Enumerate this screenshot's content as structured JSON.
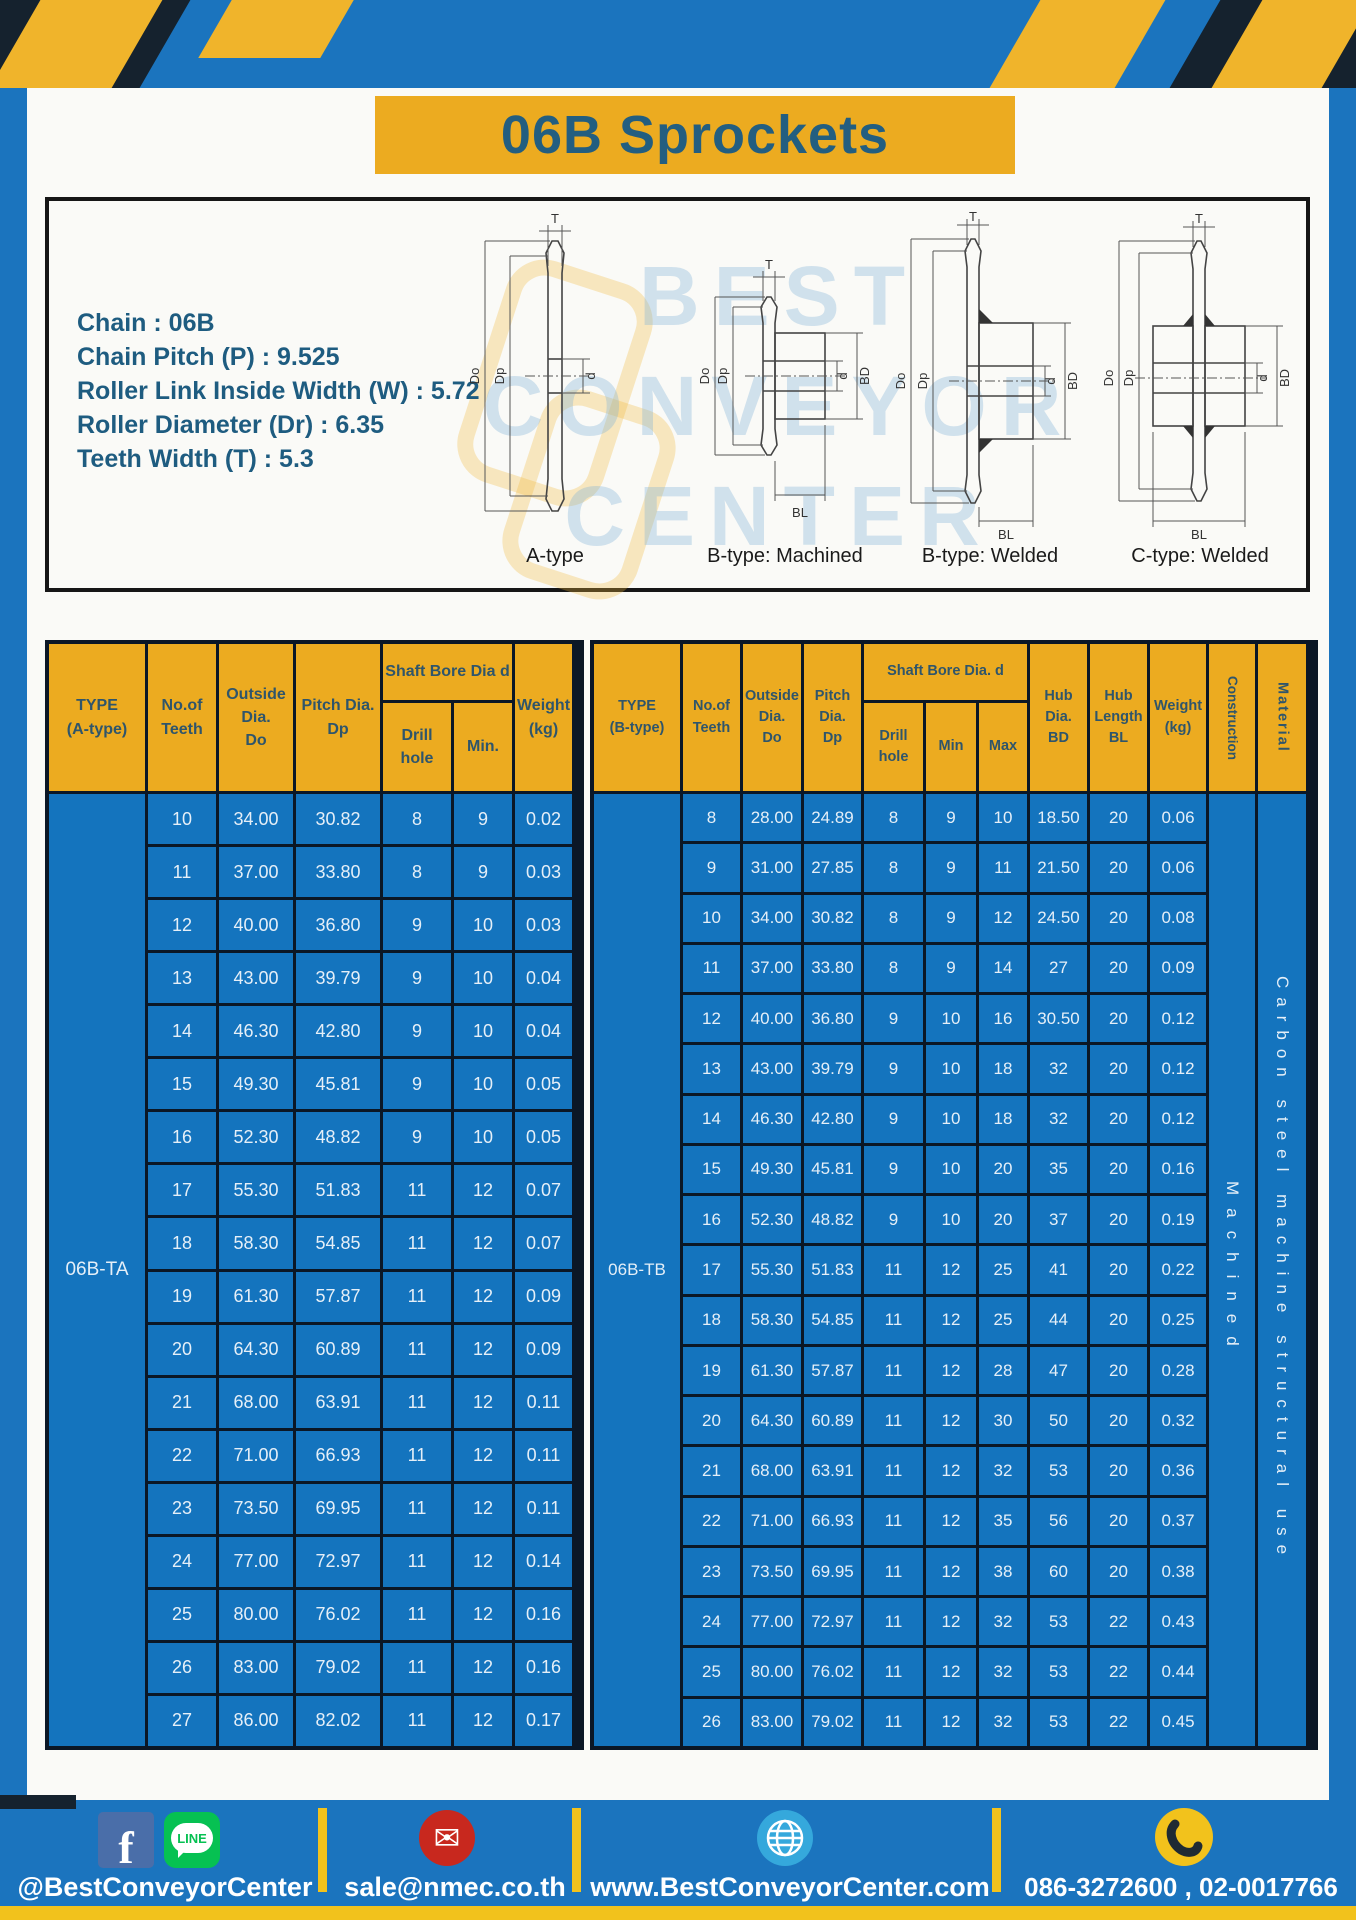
{
  "title": "06B Sprockets",
  "specs": [
    "Chain : 06B",
    "Chain Pitch (P) : 9.525",
    "Roller Link Inside Width (W) : 5.72",
    "Roller Diameter (Dr) : 6.35",
    "Teeth Width (T) : 5.3"
  ],
  "diagram": {
    "watermark_lines": [
      "BEST",
      "CONVEYOR",
      "CENTER"
    ],
    "dims": {
      "t": "T",
      "do": "Do",
      "dp": "Dp",
      "d": "d",
      "bd": "BD",
      "bl": "BL"
    },
    "figures": [
      {
        "caption": "A-type"
      },
      {
        "caption": "B-type: Machined"
      },
      {
        "caption": "B-type: Welded"
      },
      {
        "caption": "C-type: Welded"
      }
    ]
  },
  "table_a": {
    "headers": {
      "type": "TYPE\n(A-type)",
      "teeth": "No.of\nTeeth",
      "outside": "Outside\nDia.\nDo",
      "pitch": "Pitch Dia.\nDp",
      "shaft_bore": "Shaft Bore Dia d",
      "drill": "Drill hole",
      "min": "Min.",
      "weight": "Weight\n(kg)"
    },
    "type_label": "06B-TA",
    "rows": [
      [
        "10",
        "34.00",
        "30.82",
        "8",
        "9",
        "0.02"
      ],
      [
        "11",
        "37.00",
        "33.80",
        "8",
        "9",
        "0.03"
      ],
      [
        "12",
        "40.00",
        "36.80",
        "9",
        "10",
        "0.03"
      ],
      [
        "13",
        "43.00",
        "39.79",
        "9",
        "10",
        "0.04"
      ],
      [
        "14",
        "46.30",
        "42.80",
        "9",
        "10",
        "0.04"
      ],
      [
        "15",
        "49.30",
        "45.81",
        "9",
        "10",
        "0.05"
      ],
      [
        "16",
        "52.30",
        "48.82",
        "9",
        "10",
        "0.05"
      ],
      [
        "17",
        "55.30",
        "51.83",
        "11",
        "12",
        "0.07"
      ],
      [
        "18",
        "58.30",
        "54.85",
        "11",
        "12",
        "0.07"
      ],
      [
        "19",
        "61.30",
        "57.87",
        "11",
        "12",
        "0.09"
      ],
      [
        "20",
        "64.30",
        "60.89",
        "11",
        "12",
        "0.09"
      ],
      [
        "21",
        "68.00",
        "63.91",
        "11",
        "12",
        "0.11"
      ],
      [
        "22",
        "71.00",
        "66.93",
        "11",
        "12",
        "0.11"
      ],
      [
        "23",
        "73.50",
        "69.95",
        "11",
        "12",
        "0.11"
      ],
      [
        "24",
        "77.00",
        "72.97",
        "11",
        "12",
        "0.14"
      ],
      [
        "25",
        "80.00",
        "76.02",
        "11",
        "12",
        "0.16"
      ],
      [
        "26",
        "83.00",
        "79.02",
        "11",
        "12",
        "0.16"
      ],
      [
        "27",
        "86.00",
        "82.02",
        "11",
        "12",
        "0.17"
      ]
    ]
  },
  "table_b": {
    "headers": {
      "type": "TYPE\n(B-type)",
      "teeth": "No.of\nTeeth",
      "outside": "Outside\nDia.\nDo",
      "pitch": "Pitch\nDia.\nDp",
      "shaft_bore": "Shaft Bore Dia. d",
      "drill": "Drill hole",
      "min": "Min",
      "max": "Max",
      "hub_dia": "Hub\nDia.\nBD",
      "hub_len": "Hub\nLength\nBL",
      "weight": "Weight\n(kg)",
      "construction": "Construction",
      "material": "Material"
    },
    "type_label": "06B-TB",
    "construction_value": "Machined",
    "material_value": "Carbon steel machine structural use",
    "rows": [
      [
        "8",
        "28.00",
        "24.89",
        "8",
        "9",
        "10",
        "18.50",
        "20",
        "0.06"
      ],
      [
        "9",
        "31.00",
        "27.85",
        "8",
        "9",
        "11",
        "21.50",
        "20",
        "0.06"
      ],
      [
        "10",
        "34.00",
        "30.82",
        "8",
        "9",
        "12",
        "24.50",
        "20",
        "0.08"
      ],
      [
        "11",
        "37.00",
        "33.80",
        "8",
        "9",
        "14",
        "27",
        "20",
        "0.09"
      ],
      [
        "12",
        "40.00",
        "36.80",
        "9",
        "10",
        "16",
        "30.50",
        "20",
        "0.12"
      ],
      [
        "13",
        "43.00",
        "39.79",
        "9",
        "10",
        "18",
        "32",
        "20",
        "0.12"
      ],
      [
        "14",
        "46.30",
        "42.80",
        "9",
        "10",
        "18",
        "32",
        "20",
        "0.12"
      ],
      [
        "15",
        "49.30",
        "45.81",
        "9",
        "10",
        "20",
        "35",
        "20",
        "0.16"
      ],
      [
        "16",
        "52.30",
        "48.82",
        "9",
        "10",
        "20",
        "37",
        "20",
        "0.19"
      ],
      [
        "17",
        "55.30",
        "51.83",
        "11",
        "12",
        "25",
        "41",
        "20",
        "0.22"
      ],
      [
        "18",
        "58.30",
        "54.85",
        "11",
        "12",
        "25",
        "44",
        "20",
        "0.25"
      ],
      [
        "19",
        "61.30",
        "57.87",
        "11",
        "12",
        "28",
        "47",
        "20",
        "0.28"
      ],
      [
        "20",
        "64.30",
        "60.89",
        "11",
        "12",
        "30",
        "50",
        "20",
        "0.32"
      ],
      [
        "21",
        "68.00",
        "63.91",
        "11",
        "12",
        "32",
        "53",
        "20",
        "0.36"
      ],
      [
        "22",
        "71.00",
        "66.93",
        "11",
        "12",
        "35",
        "56",
        "20",
        "0.37"
      ],
      [
        "23",
        "73.50",
        "69.95",
        "11",
        "12",
        "38",
        "60",
        "20",
        "0.38"
      ],
      [
        "24",
        "77.00",
        "72.97",
        "11",
        "12",
        "32",
        "53",
        "22",
        "0.43"
      ],
      [
        "25",
        "80.00",
        "76.02",
        "11",
        "12",
        "32",
        "53",
        "22",
        "0.44"
      ],
      [
        "26",
        "83.00",
        "79.02",
        "11",
        "12",
        "32",
        "53",
        "22",
        "0.45"
      ]
    ]
  },
  "footer": {
    "facebook_letter": "f",
    "line_label": "LINE",
    "mail_glyph": "✉",
    "social_handle": "@BestConveyorCenter",
    "email": "sale@nmec.co.th",
    "website": "www.BestConveyorCenter.com",
    "phone": "086-3272600 , 02-0017766"
  },
  "colors": {
    "page_blue": "#1B74BE",
    "cell_blue": "#1474BE",
    "header_yellow": "#ECAB20",
    "header_text": "#2F556B",
    "title_text": "#235E80",
    "border_dark": "#0B1726",
    "accent_navy": "#15222E",
    "footer_yellow": "#F2C21C"
  }
}
